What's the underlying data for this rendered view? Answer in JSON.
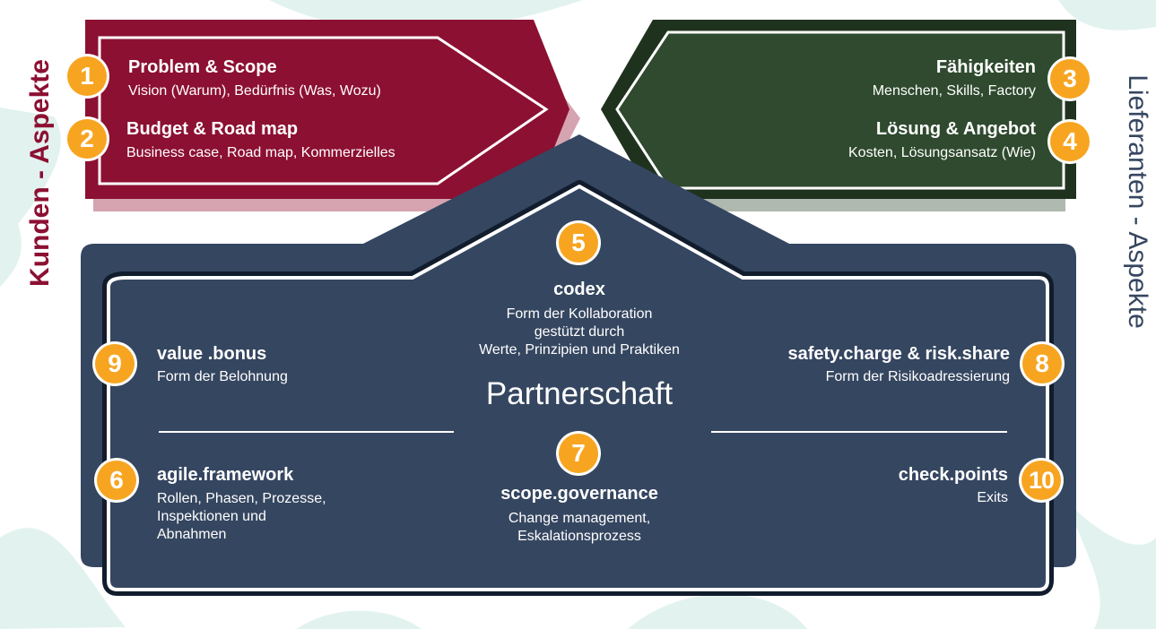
{
  "side_labels": {
    "left": "Kunden - Aspekte",
    "right": "Lieferanten - Aspekte"
  },
  "colors": {
    "customer": "#8c1032",
    "supplier": "#2f4a2e",
    "partnership": "#354660",
    "badge": "#f7a521",
    "background_shape": "#e2f2ef"
  },
  "customer": {
    "items": [
      {
        "num": "1",
        "title": "Problem & Scope",
        "sub": "Vision (Warum), Bedürfnis (Was, Wozu)"
      },
      {
        "num": "2",
        "title": "Budget & Road map",
        "sub": "Business case, Road map, Kommerzielles"
      }
    ]
  },
  "supplier": {
    "items": [
      {
        "num": "3",
        "title": "Fähigkeiten",
        "sub": "Menschen, Skills, Factory"
      },
      {
        "num": "4",
        "title": "Lösung & Angebot",
        "sub": "Kosten, Lösungsansatz (Wie)"
      }
    ]
  },
  "partnership": {
    "title": "Partnerschaft",
    "codex": {
      "num": "5",
      "title": "codex",
      "sub": [
        "Form der Kollaboration",
        "gestützt durch",
        "Werte, Prinzipien und Praktiken"
      ]
    },
    "scope": {
      "num": "7",
      "title": "scope.governance",
      "sub": [
        "Change management,",
        "Eskalationsprozess"
      ]
    },
    "value": {
      "num": "9",
      "title": "value .bonus",
      "sub": "Form der Belohnung"
    },
    "safety": {
      "num": "8",
      "title": "safety.charge & risk.share",
      "sub": "Form der Risikoadressierung"
    },
    "agile": {
      "num": "6",
      "title": "agile.framework",
      "sub": [
        "Rollen, Phasen, Prozesse,",
        "Inspektionen und",
        "Abnahmen"
      ]
    },
    "check": {
      "num": "10",
      "title": "check.points",
      "sub": "Exits"
    }
  }
}
